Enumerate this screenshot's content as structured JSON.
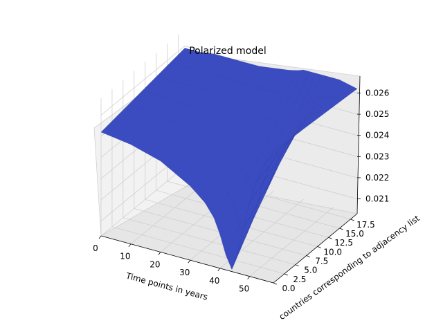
{
  "chart_data": {
    "type": "surface3d",
    "title": "Polarized model",
    "xlabel": "Time points in years",
    "ylabel": "countries corresponding to adjacency list",
    "zlabel": "",
    "x_ticks": [
      "0",
      "10",
      "20",
      "30",
      "40",
      "50"
    ],
    "y_ticks": [
      "0.0",
      "2.5",
      "5.0",
      "7.5",
      "10.0",
      "12.5",
      "15.0",
      "17.5"
    ],
    "z_ticks": [
      "0.021",
      "0.022",
      "0.023",
      "0.024",
      "0.025",
      "0.026"
    ],
    "xlim": [
      0,
      58
    ],
    "ylim": [
      0,
      19
    ],
    "zlim": [
      0.0203,
      0.0268
    ],
    "surface_color": "#3b4cc0",
    "surface_edge_color": "#2f3ca8",
    "pane_color": "#f2f2f2",
    "grid": true,
    "surface_profile": {
      "description_of_values": "z value of the front edge (y = 0) along x, and z value at the back edge (y = 19)",
      "x": [
        0,
        5,
        10,
        15,
        20,
        25,
        30,
        35,
        38,
        40,
        42,
        44,
        46,
        48,
        50,
        52,
        55,
        58
      ],
      "z_front": [
        0.0252,
        0.0251,
        0.025,
        0.0248,
        0.0246,
        0.0242,
        0.0238,
        0.0232,
        0.0226,
        0.0219,
        0.021,
        0.0204,
        0.0213,
        0.0225,
        0.0238,
        0.0248,
        0.0258,
        0.0265
      ],
      "z_back": [
        0.0259,
        0.0259,
        0.026,
        0.026,
        0.026,
        0.026,
        0.0261,
        0.0262,
        0.0263,
        0.0264,
        0.0264,
        0.0264,
        0.0264,
        0.0264,
        0.0264,
        0.0264,
        0.0263,
        0.0262
      ]
    }
  }
}
